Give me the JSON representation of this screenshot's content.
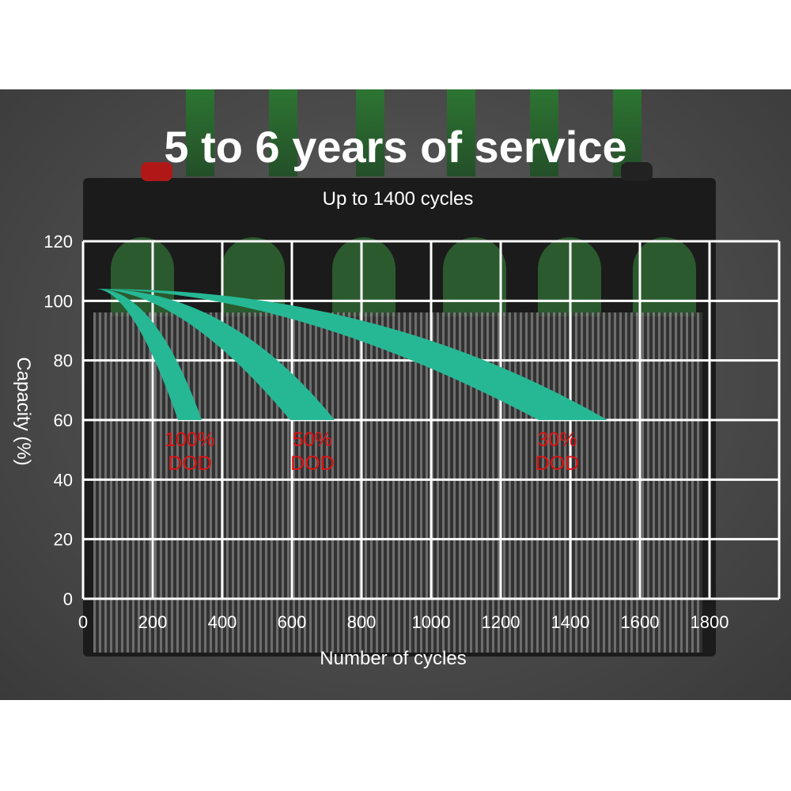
{
  "header": {
    "title": "5 to 6 years of service",
    "subtitle": "Up to 1400 cycles"
  },
  "colors": {
    "band": "#26b894",
    "dod_label": "#e01010",
    "grid": "#ffffff",
    "text": "#ffffff"
  },
  "chart_data": {
    "type": "area",
    "xlabel": "Number of cycles",
    "ylabel": "Capacity (%)",
    "xlim": [
      0,
      2000
    ],
    "ylim": [
      0,
      120
    ],
    "grid": true,
    "x_ticks": [
      "0",
      "200",
      "400",
      "600",
      "800",
      "1000",
      "1200",
      "1400",
      "1600",
      "1800"
    ],
    "y_ticks": [
      "0",
      "20",
      "40",
      "60",
      "80",
      "100",
      "120"
    ],
    "series": [
      {
        "name": "100% DOD",
        "label_line1": "100%",
        "label_line2": "DOD",
        "start": [
          40,
          104
        ],
        "end_y": 60,
        "end_x_range": [
          273,
          341
        ]
      },
      {
        "name": "50% DOD",
        "label_line1": "50%",
        "label_line2": "DOD",
        "start": [
          40,
          104
        ],
        "end_y": 60,
        "end_x_range": [
          595,
          723
        ]
      },
      {
        "name": "30% DOD",
        "label_line1": "30%",
        "label_line2": "DOD",
        "start": [
          40,
          104
        ],
        "end_y": 60,
        "end_x_range": [
          1309,
          1507
        ]
      }
    ]
  }
}
